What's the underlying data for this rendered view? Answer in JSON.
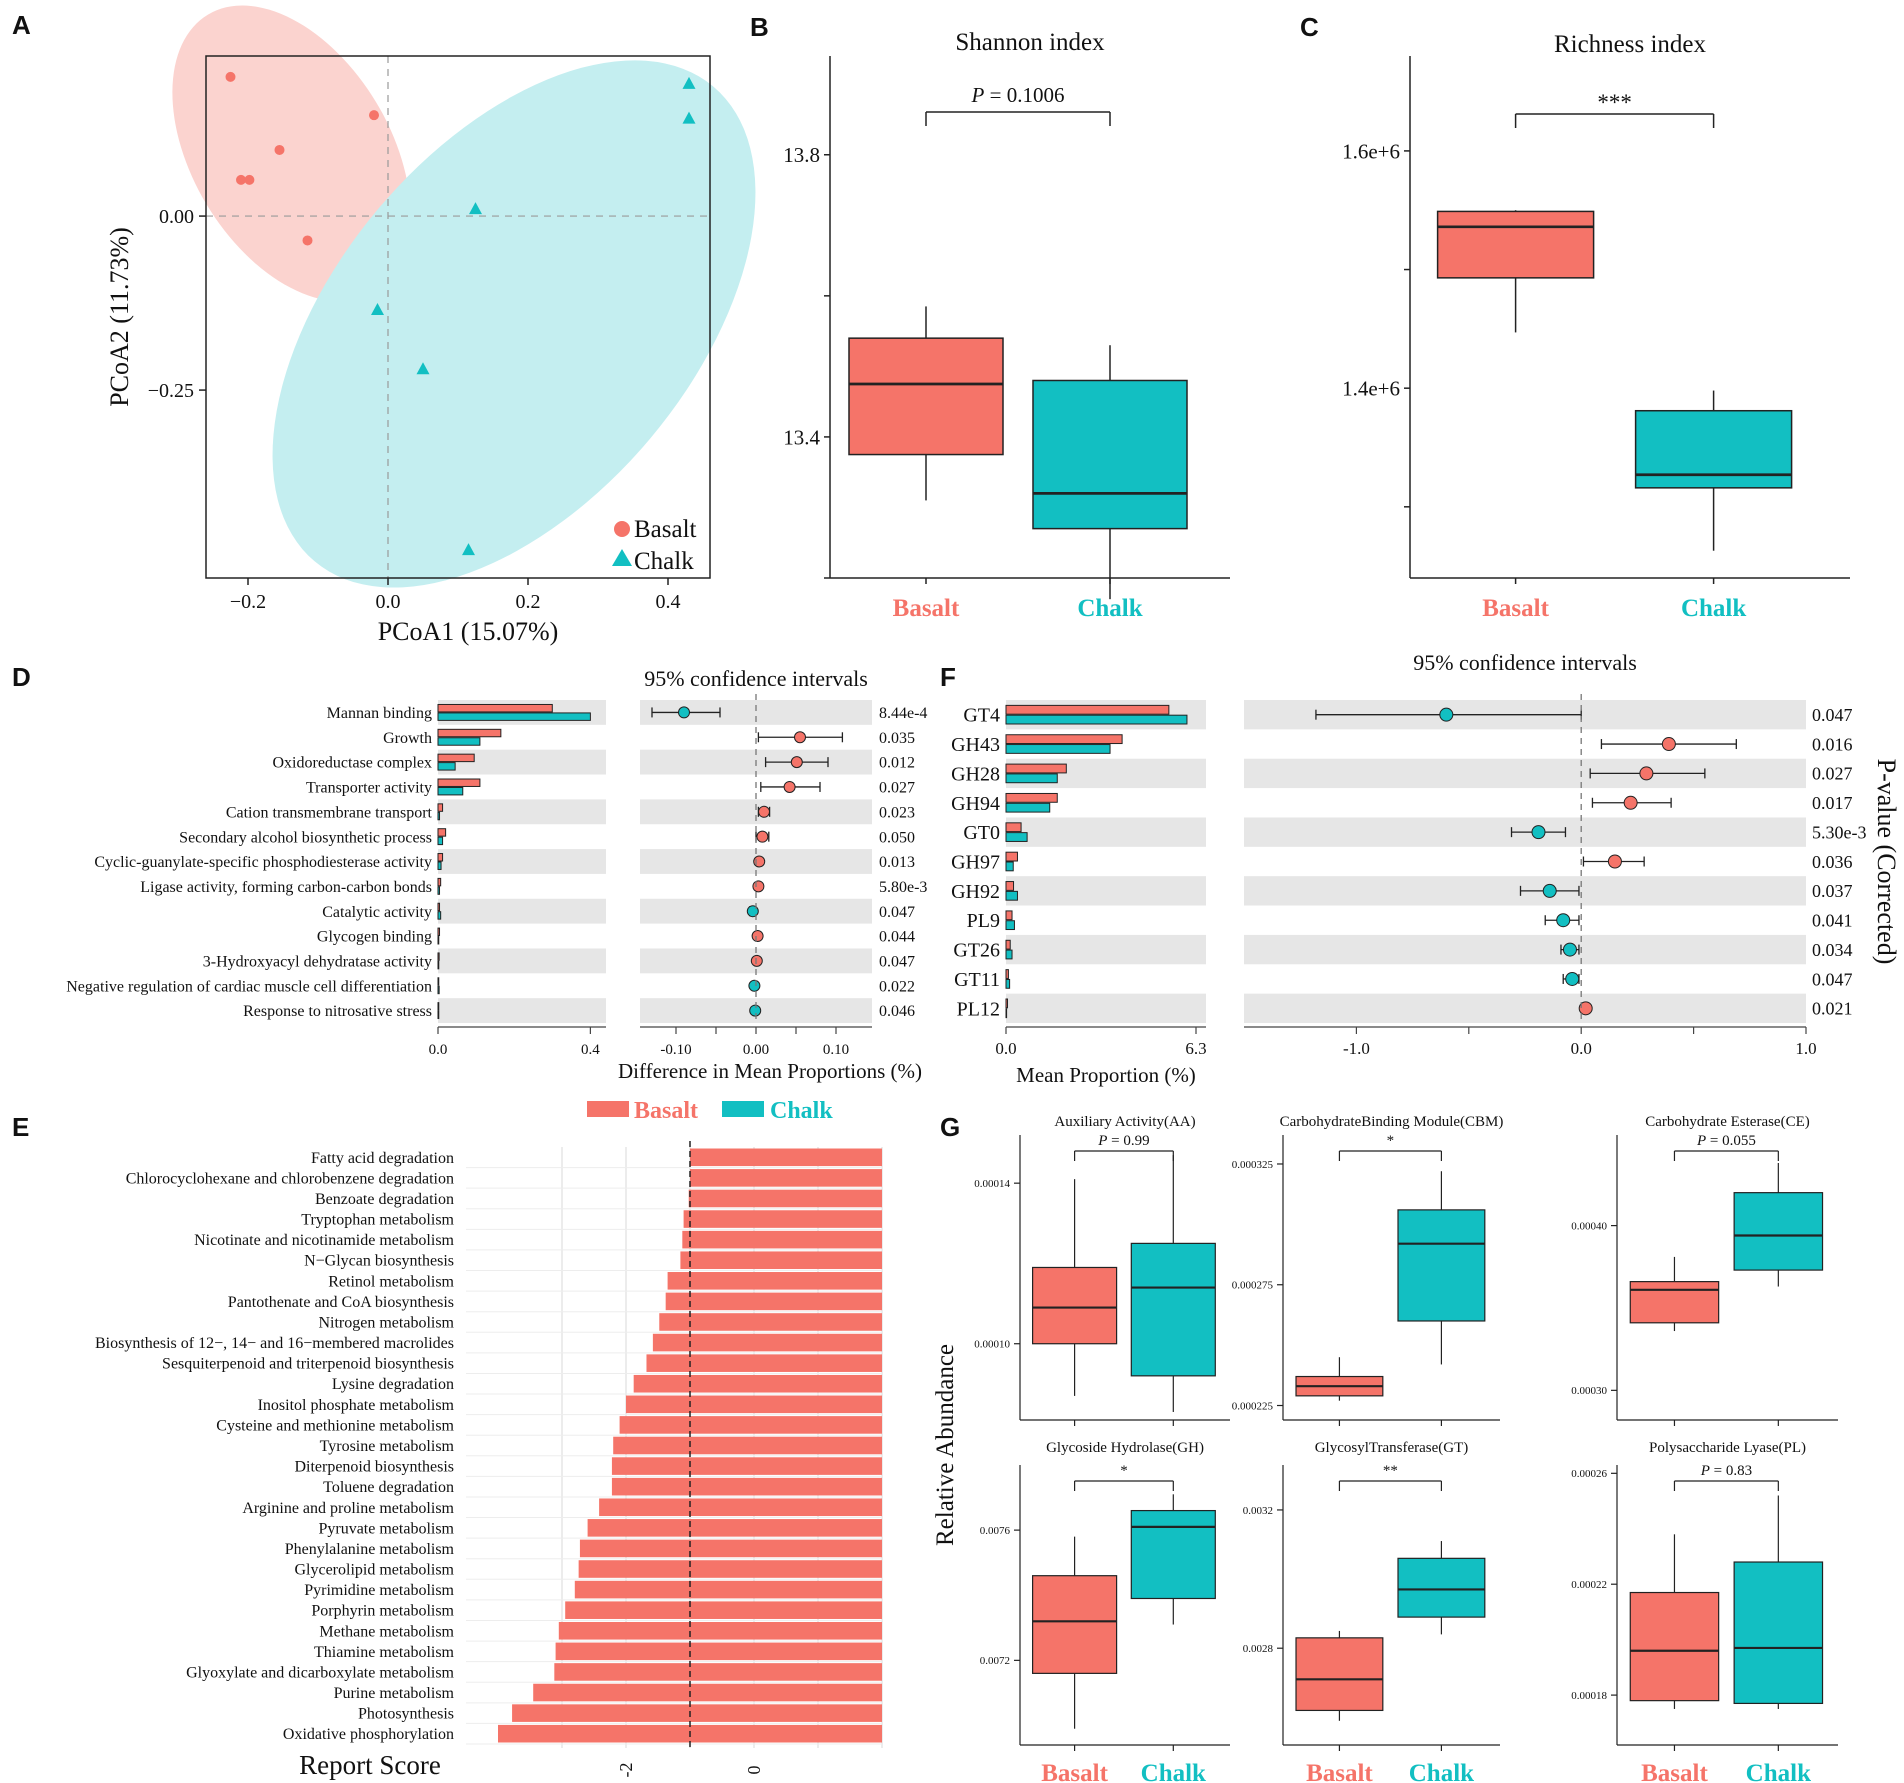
{
  "colors": {
    "basalt": "#f57469",
    "chalk": "#12bfc2",
    "basalt_fill": "#fbd3cf",
    "chalk_fill": "#c4eef0",
    "band": "#e6e6e6"
  },
  "panel_letters": {
    "A": "A",
    "B": "B",
    "C": "C",
    "D": "D",
    "E": "E",
    "F": "F",
    "G": "G"
  },
  "chart_data": [
    {
      "id": "A",
      "type": "scatter",
      "xlabel": "PCoA1 (15.07%)",
      "ylabel": "PCoA2 (11.73%)",
      "xlim": [
        -0.26,
        0.46
      ],
      "ylim": [
        -0.52,
        0.23
      ],
      "xticks": [
        -0.2,
        0.0,
        0.2,
        0.4
      ],
      "xtick_labels": [
        "−0.2",
        "0.0",
        "0.2",
        "0.4"
      ],
      "yticks": [
        0.0,
        -0.25
      ],
      "ytick_labels": [
        "0.00",
        "−0.25"
      ],
      "legend": [
        {
          "name": "Basalt",
          "shape": "circle"
        },
        {
          "name": "Chalk",
          "shape": "triangle"
        }
      ],
      "series": [
        {
          "name": "Basalt",
          "points": [
            [
              -0.225,
              0.2
            ],
            [
              -0.02,
              0.145
            ],
            [
              -0.155,
              0.095
            ],
            [
              -0.21,
              0.052
            ],
            [
              -0.198,
              0.052
            ],
            [
              -0.115,
              -0.035
            ]
          ]
        },
        {
          "name": "Chalk",
          "points": [
            [
              0.43,
              0.19
            ],
            [
              0.43,
              0.14
            ],
            [
              0.125,
              0.01
            ],
            [
              -0.015,
              -0.135
            ],
            [
              0.05,
              -0.22
            ],
            [
              0.115,
              -0.48
            ]
          ]
        }
      ]
    },
    {
      "id": "B",
      "type": "box",
      "title": "Shannon index",
      "ylim": [
        13.2,
        13.94
      ],
      "yticks": [
        13.4,
        13.8
      ],
      "ytick_labels": [
        "13.4",
        "13.8"
      ],
      "minor_yticks": [
        13.6,
        13.2
      ],
      "categories": [
        "Basalt",
        "Chalk"
      ],
      "boxes": [
        {
          "name": "Basalt",
          "min": 13.31,
          "q1": 13.375,
          "median": 13.475,
          "q3": 13.54,
          "max": 13.585
        },
        {
          "name": "Chalk",
          "min": 13.17,
          "q1": 13.27,
          "median": 13.32,
          "q3": 13.48,
          "max": 13.53
        }
      ],
      "annotation": "P = 0.1006"
    },
    {
      "id": "C",
      "type": "box",
      "title": "Richness index",
      "ylim": [
        1.24,
        1.68
      ],
      "yticks": [
        1.4,
        1.6
      ],
      "ytick_labels": [
        "1.4e+6",
        "1.6e+6"
      ],
      "minor_yticks": [
        1.5,
        1.3
      ],
      "categories": [
        "Basalt",
        "Chalk"
      ],
      "boxes": [
        {
          "name": "Basalt",
          "min": 1.447,
          "q1": 1.493,
          "median": 1.536,
          "q3": 1.549,
          "max": 1.55
        },
        {
          "name": "Chalk",
          "min": 1.263,
          "q1": 1.316,
          "median": 1.327,
          "q3": 1.381,
          "max": 1.398
        }
      ],
      "annotation": "***"
    },
    {
      "id": "D",
      "type": "extended_error_bar",
      "ci_title": "95% confidence intervals",
      "left_xlim": [
        0,
        0.42
      ],
      "left_xticks": [
        0,
        0.4
      ],
      "left_xtick_labels": [
        "0.0",
        "0.4"
      ],
      "right_xlim": [
        -0.145,
        0.145
      ],
      "right_xticks": [
        -0.1,
        0.0,
        0.1
      ],
      "right_xtick_labels": [
        "-0.10",
        "0.00",
        "0.10"
      ],
      "xlabel": "Difference in Mean Proportions (%)",
      "rows": [
        {
          "label": "Mannan binding",
          "basalt": 0.3,
          "chalk": 0.4,
          "diff": -0.09,
          "lo": -0.13,
          "hi": -0.045,
          "p": "8.44e-4"
        },
        {
          "label": "Growth",
          "basalt": 0.165,
          "chalk": 0.11,
          "diff": 0.055,
          "lo": 0.003,
          "hi": 0.108,
          "p": "0.035"
        },
        {
          "label": "Oxidoreductase complex",
          "basalt": 0.095,
          "chalk": 0.045,
          "diff": 0.051,
          "lo": 0.012,
          "hi": 0.09,
          "p": "0.012"
        },
        {
          "label": "Transporter activity",
          "basalt": 0.11,
          "chalk": 0.065,
          "diff": 0.042,
          "lo": 0.006,
          "hi": 0.08,
          "p": "0.027"
        },
        {
          "label": "Cation transmembrane transport",
          "basalt": 0.012,
          "chalk": 0.004,
          "diff": 0.01,
          "lo": 0.003,
          "hi": 0.017,
          "p": "0.023"
        },
        {
          "label": "Secondary alcohol biosynthetic process",
          "basalt": 0.02,
          "chalk": 0.012,
          "diff": 0.008,
          "lo": 0.0,
          "hi": 0.016,
          "p": "0.050"
        },
        {
          "label": "Cyclic-guanylate-specific phosphodiesterase activity",
          "basalt": 0.012,
          "chalk": 0.008,
          "diff": 0.004,
          "lo": 0.001,
          "hi": 0.007,
          "p": "0.013"
        },
        {
          "label": "Ligase activity, forming carbon-carbon bonds",
          "basalt": 0.007,
          "chalk": 0.004,
          "diff": 0.003,
          "lo": 0.001,
          "hi": 0.005,
          "p": "5.80e-3"
        },
        {
          "label": "Catalytic activity",
          "basalt": 0.004,
          "chalk": 0.007,
          "diff": -0.004,
          "lo": -0.008,
          "hi": 0.0,
          "p": "0.047"
        },
        {
          "label": "Glycogen binding",
          "basalt": 0.004,
          "chalk": 0.002,
          "diff": 0.002,
          "lo": 0.0,
          "hi": 0.004,
          "p": "0.044"
        },
        {
          "label": "3-Hydroxyacyl dehydratase activity",
          "basalt": 0.003,
          "chalk": 0.002,
          "diff": 0.001,
          "lo": 0.0,
          "hi": 0.003,
          "p": "0.047"
        },
        {
          "label": "Negative regulation of cardiac muscle cell differentiation",
          "basalt": 0.002,
          "chalk": 0.003,
          "diff": -0.002,
          "lo": -0.004,
          "hi": 0.0,
          "p": "0.022"
        },
        {
          "label": "Response to nitrosative stress",
          "basalt": 0.002,
          "chalk": 0.002,
          "diff": -0.001,
          "lo": -0.003,
          "hi": 0.0,
          "p": "0.046"
        }
      ]
    },
    {
      "id": "E",
      "type": "bar_horizontal",
      "xlabel": "Report Score",
      "legend": [
        "Basalt",
        "Chalk"
      ],
      "xlim": [
        -4.5,
        2.0
      ],
      "xticks": [
        -2,
        0
      ],
      "xtick_labels": [
        "-2",
        "0"
      ],
      "threshold": -1.0,
      "categories": [
        "Fatty acid degradation",
        "Chlorocyclohexane and chlorobenzene degradation",
        "Benzoate degradation",
        "Tryptophan metabolism",
        "Nicotinate and nicotinamide metabolism",
        "N−Glycan biosynthesis",
        "Retinol metabolism",
        "Pantothenate and CoA biosynthesis",
        "Nitrogen metabolism",
        "Biosynthesis of 12−, 14− and 16−membered macrolides",
        "Sesquiterpenoid and triterpenoid biosynthesis",
        "Lysine degradation",
        "Inositol phosphate metabolism",
        "Cysteine and methionine metabolism",
        "Tyrosine metabolism",
        "Diterpenoid biosynthesis",
        "Toluene degradation",
        "Arginine and proline metabolism",
        "Pyruvate metabolism",
        "Phenylalanine metabolism",
        "Glycerolipid metabolism",
        "Pyrimidine metabolism",
        "Porphyrin metabolism",
        "Methane metabolism",
        "Thiamine metabolism",
        "Glyoxylate and dicarboxylate metabolism",
        "Purine metabolism",
        "Photosynthesis",
        "Oxidative phosphorylation"
      ],
      "values": [
        -1.0,
        -1.0,
        -1.02,
        -1.1,
        -1.12,
        -1.15,
        -1.35,
        -1.38,
        -1.48,
        -1.58,
        -1.68,
        -1.88,
        -2.0,
        -2.1,
        -2.2,
        -2.22,
        -2.22,
        -2.42,
        -2.6,
        -2.72,
        -2.74,
        -2.8,
        -2.95,
        -3.05,
        -3.1,
        -3.12,
        -3.45,
        -3.78,
        -4.0
      ]
    },
    {
      "id": "F",
      "type": "extended_error_bar",
      "ci_title": "95% confidence intervals",
      "ylabel_right": "P-value (Corrected)",
      "left_xlim": [
        0,
        6.3
      ],
      "left_xticks": [
        0,
        6.3
      ],
      "left_xtick_labels": [
        "0.0",
        "6.3"
      ],
      "right_xlim": [
        -1.5,
        1.0
      ],
      "right_xticks": [
        -1.0,
        0.0,
        1.0
      ],
      "right_xtick_labels": [
        "-1.0",
        "0.0",
        "1.0"
      ],
      "xlabel": "Mean Proportion (%)",
      "rows": [
        {
          "label": "GT4",
          "basalt": 5.4,
          "chalk": 6.0,
          "diff": -0.6,
          "lo": -1.18,
          "hi": 0.0,
          "p": "0.047"
        },
        {
          "label": "GH43",
          "basalt": 3.85,
          "chalk": 3.45,
          "diff": 0.39,
          "lo": 0.09,
          "hi": 0.69,
          "p": "0.016"
        },
        {
          "label": "GH28",
          "basalt": 2.0,
          "chalk": 1.7,
          "diff": 0.29,
          "lo": 0.04,
          "hi": 0.55,
          "p": "0.027"
        },
        {
          "label": "GH94",
          "basalt": 1.7,
          "chalk": 1.45,
          "diff": 0.22,
          "lo": 0.05,
          "hi": 0.4,
          "p": "0.017"
        },
        {
          "label": "GT0",
          "basalt": 0.5,
          "chalk": 0.7,
          "diff": -0.19,
          "lo": -0.31,
          "hi": -0.07,
          "p": "5.30e-3"
        },
        {
          "label": "GH97",
          "basalt": 0.38,
          "chalk": 0.24,
          "diff": 0.15,
          "lo": 0.01,
          "hi": 0.28,
          "p": "0.036"
        },
        {
          "label": "GH92",
          "basalt": 0.25,
          "chalk": 0.38,
          "diff": -0.14,
          "lo": -0.27,
          "hi": -0.01,
          "p": "0.037"
        },
        {
          "label": "PL9",
          "basalt": 0.2,
          "chalk": 0.28,
          "diff": -0.08,
          "lo": -0.16,
          "hi": -0.01,
          "p": "0.041"
        },
        {
          "label": "GT26",
          "basalt": 0.14,
          "chalk": 0.2,
          "diff": -0.05,
          "lo": -0.09,
          "hi": -0.01,
          "p": "0.034"
        },
        {
          "label": "GT11",
          "basalt": 0.08,
          "chalk": 0.12,
          "diff": -0.04,
          "lo": -0.08,
          "hi": -0.01,
          "p": "0.047"
        },
        {
          "label": "PL12",
          "basalt": 0.05,
          "chalk": 0.02,
          "diff": 0.02,
          "lo": 0.0,
          "hi": 0.03,
          "p": "0.021"
        }
      ]
    },
    {
      "id": "G",
      "type": "box_grid",
      "ylabel": "Relative Abundance",
      "categories": [
        "Basalt",
        "Chalk"
      ],
      "subplots": [
        {
          "title": "Auxiliary Activity(AA)",
          "annotation": "P = 0.99",
          "ylim": [
            8.1e-05,
            0.000152
          ],
          "yticks": [
            0.0001,
            0.00014
          ],
          "ytick_labels": [
            "0.00010",
            "0.00014"
          ],
          "boxes": [
            {
              "min": 8.7e-05,
              "q1": 0.0001,
              "median": 0.000109,
              "q3": 0.000119,
              "max": 0.000141
            },
            {
              "min": 8.3e-05,
              "q1": 9.2e-05,
              "median": 0.000114,
              "q3": 0.000125,
              "max": 0.000147
            }
          ]
        },
        {
          "title": "CarbohydrateBinding  Module(CBM)",
          "annotation": "*",
          "ylim": [
            0.000219,
            0.000337
          ],
          "yticks": [
            0.000225,
            0.000275,
            0.000325
          ],
          "ytick_labels": [
            "0.000225",
            "0.000275",
            "0.000325"
          ],
          "boxes": [
            {
              "min": 0.000227,
              "q1": 0.000229,
              "median": 0.000233,
              "q3": 0.000237,
              "max": 0.000245
            },
            {
              "min": 0.000242,
              "q1": 0.00026,
              "median": 0.000292,
              "q3": 0.000306,
              "max": 0.000322
            }
          ]
        },
        {
          "title": "Carbohydrate Esterase(CE)",
          "annotation": "P = 0.055",
          "ylim": [
            0.000282,
            0.000455
          ],
          "yticks": [
            0.0003,
            0.0004
          ],
          "ytick_labels": [
            "0.00030",
            "0.00040"
          ],
          "boxes": [
            {
              "min": 0.000336,
              "q1": 0.000341,
              "median": 0.000361,
              "q3": 0.000366,
              "max": 0.000381
            },
            {
              "min": 0.000363,
              "q1": 0.000373,
              "median": 0.000394,
              "q3": 0.00042,
              "max": 0.000438
            }
          ]
        },
        {
          "title": "Glycoside Hydrolase(GH)",
          "annotation": "*",
          "ylim": [
            0.00694,
            0.0078
          ],
          "yticks": [
            0.0072,
            0.0076
          ],
          "ytick_labels": [
            "0.0072",
            "0.0076"
          ],
          "boxes": [
            {
              "min": 0.00699,
              "q1": 0.00716,
              "median": 0.00732,
              "q3": 0.00746,
              "max": 0.00758
            },
            {
              "min": 0.00731,
              "q1": 0.00739,
              "median": 0.00761,
              "q3": 0.00766,
              "max": 0.00771
            }
          ]
        },
        {
          "title": "GlycosylTransferase(GT)",
          "annotation": "**",
          "ylim": [
            0.00252,
            0.00333
          ],
          "yticks": [
            0.0028,
            0.0032
          ],
          "ytick_labels": [
            "0.0028",
            "0.0032"
          ],
          "boxes": [
            {
              "min": 0.00259,
              "q1": 0.00262,
              "median": 0.00271,
              "q3": 0.00283,
              "max": 0.00285
            },
            {
              "min": 0.00284,
              "q1": 0.00289,
              "median": 0.00297,
              "q3": 0.00306,
              "max": 0.00311
            }
          ]
        },
        {
          "title": "Polysaccharide Lyase(PL)",
          "annotation": "P = 0.83",
          "ylim": [
            0.000162,
            0.000263
          ],
          "yticks": [
            0.00018,
            0.00022,
            0.00026
          ],
          "ytick_labels": [
            "0.00018",
            "0.00022",
            "0.00026"
          ],
          "boxes": [
            {
              "min": 0.000175,
              "q1": 0.000178,
              "median": 0.000196,
              "q3": 0.000217,
              "max": 0.000238
            },
            {
              "min": 0.000175,
              "q1": 0.000177,
              "median": 0.000197,
              "q3": 0.000228,
              "max": 0.000252
            }
          ]
        }
      ]
    }
  ]
}
